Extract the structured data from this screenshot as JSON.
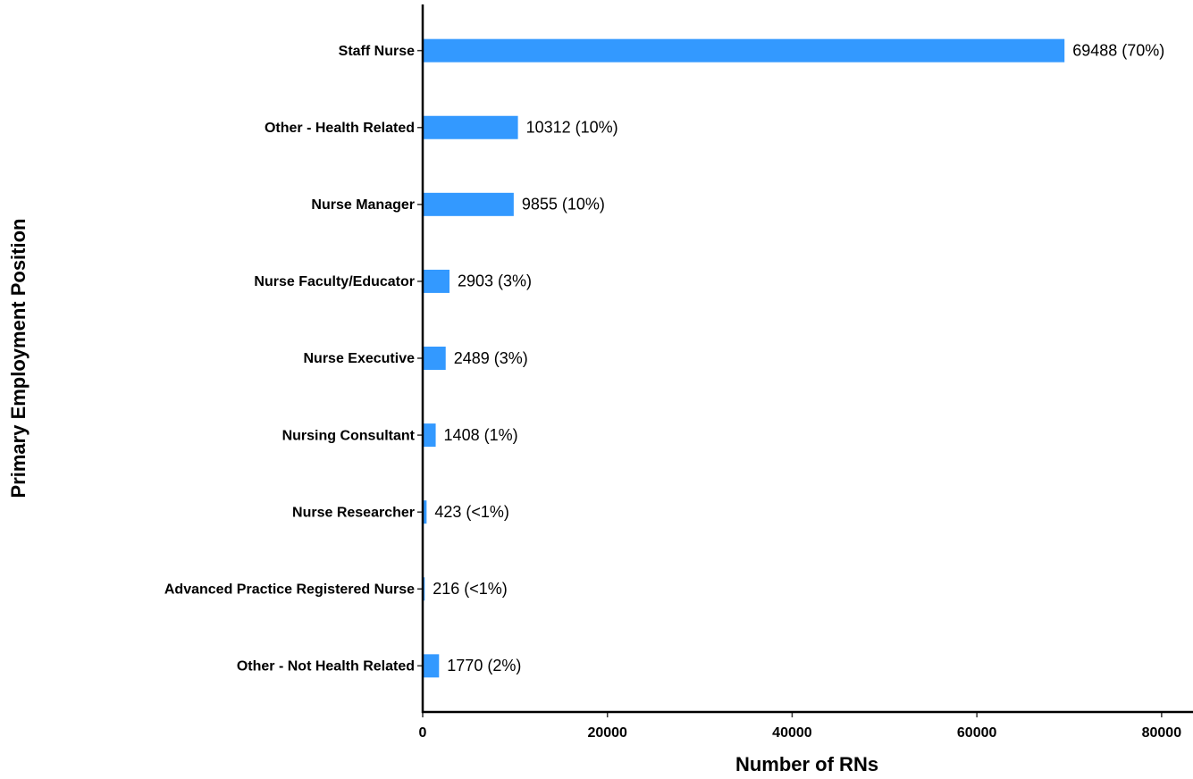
{
  "chart_data": {
    "type": "bar",
    "orientation": "horizontal",
    "xlabel": "Number of RNs",
    "ylabel": "Primary Employment Position",
    "categories": [
      "Staff Nurse",
      "Other - Health Related",
      "Nurse Manager",
      "Nurse Faculty/Educator",
      "Nurse Executive",
      "Nursing Consultant",
      "Nurse Researcher",
      "Advanced Practice Registered Nurse",
      "Other - Not Health Related"
    ],
    "values": [
      69488,
      10312,
      9855,
      2903,
      2489,
      1408,
      423,
      216,
      1770
    ],
    "value_labels": [
      "69488 (70%)",
      "10312 (10%)",
      "9855 (10%)",
      "2903 (3%)",
      "2489 (3%)",
      "1408 (1%)",
      "423 (<1%)",
      "216 (<1%)",
      "1770 (2%)"
    ],
    "color": "#3399ff",
    "xlim": [
      0,
      83400
    ],
    "xticks": [
      0,
      20000,
      40000,
      60000,
      80000
    ],
    "grid": false
  }
}
